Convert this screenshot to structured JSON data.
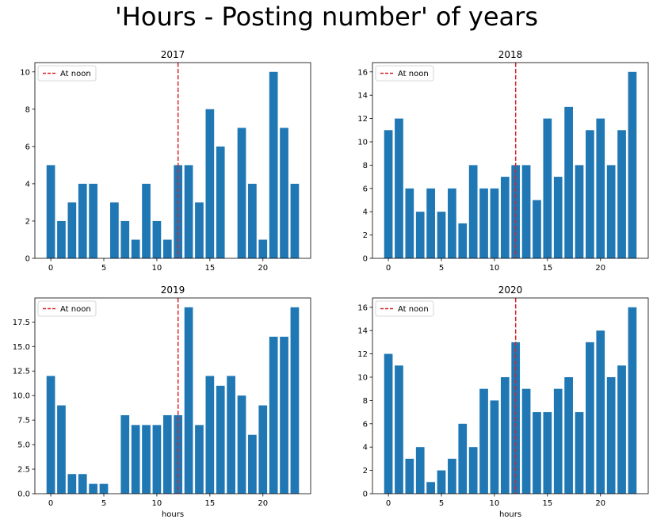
{
  "suptitle": "'Hours - Posting number' of years",
  "chart_data": [
    {
      "type": "bar",
      "title": "2017",
      "x": [
        0,
        1,
        2,
        3,
        4,
        5,
        6,
        7,
        8,
        9,
        10,
        11,
        12,
        13,
        14,
        15,
        16,
        17,
        18,
        19,
        20,
        21,
        22,
        23
      ],
      "values": [
        5,
        2,
        3,
        4,
        4,
        0,
        3,
        2,
        1,
        4,
        2,
        1,
        5,
        5,
        3,
        8,
        6,
        0,
        7,
        4,
        1,
        10,
        7,
        4
      ],
      "xlabel": "",
      "ylabel": "",
      "xlim": [
        -1.5,
        24.5
      ],
      "ylim": [
        0,
        10.5
      ],
      "xticks": [
        0,
        5,
        10,
        15,
        20
      ],
      "yticks": [
        0,
        2,
        4,
        6,
        8,
        10
      ],
      "ytick_labels": [
        "0",
        "2",
        "4",
        "6",
        "8",
        "10"
      ],
      "vline": {
        "x": 12,
        "label": "At noon",
        "color": "#d62728"
      },
      "legend": "top-left",
      "bar_color": "#1f77b4",
      "grid": false
    },
    {
      "type": "bar",
      "title": "2018",
      "x": [
        0,
        1,
        2,
        3,
        4,
        5,
        6,
        7,
        8,
        9,
        10,
        11,
        12,
        13,
        14,
        15,
        16,
        17,
        18,
        19,
        20,
        21,
        22,
        23
      ],
      "values": [
        11,
        12,
        6,
        4,
        6,
        4,
        6,
        3,
        8,
        6,
        6,
        7,
        8,
        8,
        5,
        12,
        7,
        13,
        8,
        11,
        12,
        8,
        11,
        16
      ],
      "xlabel": "",
      "ylabel": "",
      "xlim": [
        -1.5,
        24.5
      ],
      "ylim": [
        0,
        16.8
      ],
      "xticks": [
        0,
        5,
        10,
        15,
        20
      ],
      "yticks": [
        0,
        2,
        4,
        6,
        8,
        10,
        12,
        14,
        16
      ],
      "ytick_labels": [
        "0",
        "2",
        "4",
        "6",
        "8",
        "10",
        "12",
        "14",
        "16"
      ],
      "vline": {
        "x": 12,
        "label": "At noon",
        "color": "#d62728"
      },
      "legend": "top-left",
      "bar_color": "#1f77b4",
      "grid": false
    },
    {
      "type": "bar",
      "title": "2019",
      "x": [
        0,
        1,
        2,
        3,
        4,
        5,
        6,
        7,
        8,
        9,
        10,
        11,
        12,
        13,
        14,
        15,
        16,
        17,
        18,
        19,
        20,
        21,
        22,
        23
      ],
      "values": [
        12,
        9,
        2,
        2,
        1,
        1,
        0,
        8,
        7,
        7,
        7,
        8,
        8,
        19,
        7,
        12,
        11,
        12,
        10,
        6,
        9,
        16,
        16,
        19
      ],
      "xlabel": "hours",
      "ylabel": "",
      "xlim": [
        -1.5,
        24.5
      ],
      "ylim": [
        0,
        19.95
      ],
      "xticks": [
        0,
        5,
        10,
        15,
        20
      ],
      "yticks": [
        0,
        2.5,
        5,
        7.5,
        10,
        12.5,
        15,
        17.5
      ],
      "ytick_labels": [
        "0.0",
        "2.5",
        "5.0",
        "7.5",
        "10.0",
        "12.5",
        "15.0",
        "17.5"
      ],
      "vline": {
        "x": 12,
        "label": "At noon",
        "color": "#d62728"
      },
      "legend": "top-left",
      "bar_color": "#1f77b4",
      "grid": false
    },
    {
      "type": "bar",
      "title": "2020",
      "x": [
        0,
        1,
        2,
        3,
        4,
        5,
        6,
        7,
        8,
        9,
        10,
        11,
        12,
        13,
        14,
        15,
        16,
        17,
        18,
        19,
        20,
        21,
        22,
        23
      ],
      "values": [
        12,
        11,
        3,
        4,
        1,
        2,
        3,
        6,
        4,
        9,
        8,
        10,
        13,
        9,
        7,
        7,
        9,
        10,
        7,
        13,
        14,
        10,
        11,
        16
      ],
      "xlabel": "hours",
      "ylabel": "",
      "xlim": [
        -1.5,
        24.5
      ],
      "ylim": [
        0,
        16.8
      ],
      "xticks": [
        0,
        5,
        10,
        15,
        20
      ],
      "yticks": [
        0,
        2,
        4,
        6,
        8,
        10,
        12,
        14,
        16
      ],
      "ytick_labels": [
        "0",
        "2",
        "4",
        "6",
        "8",
        "10",
        "12",
        "14",
        "16"
      ],
      "vline": {
        "x": 12,
        "label": "At noon",
        "color": "#d62728"
      },
      "legend": "top-left",
      "bar_color": "#1f77b4",
      "grid": false
    }
  ]
}
